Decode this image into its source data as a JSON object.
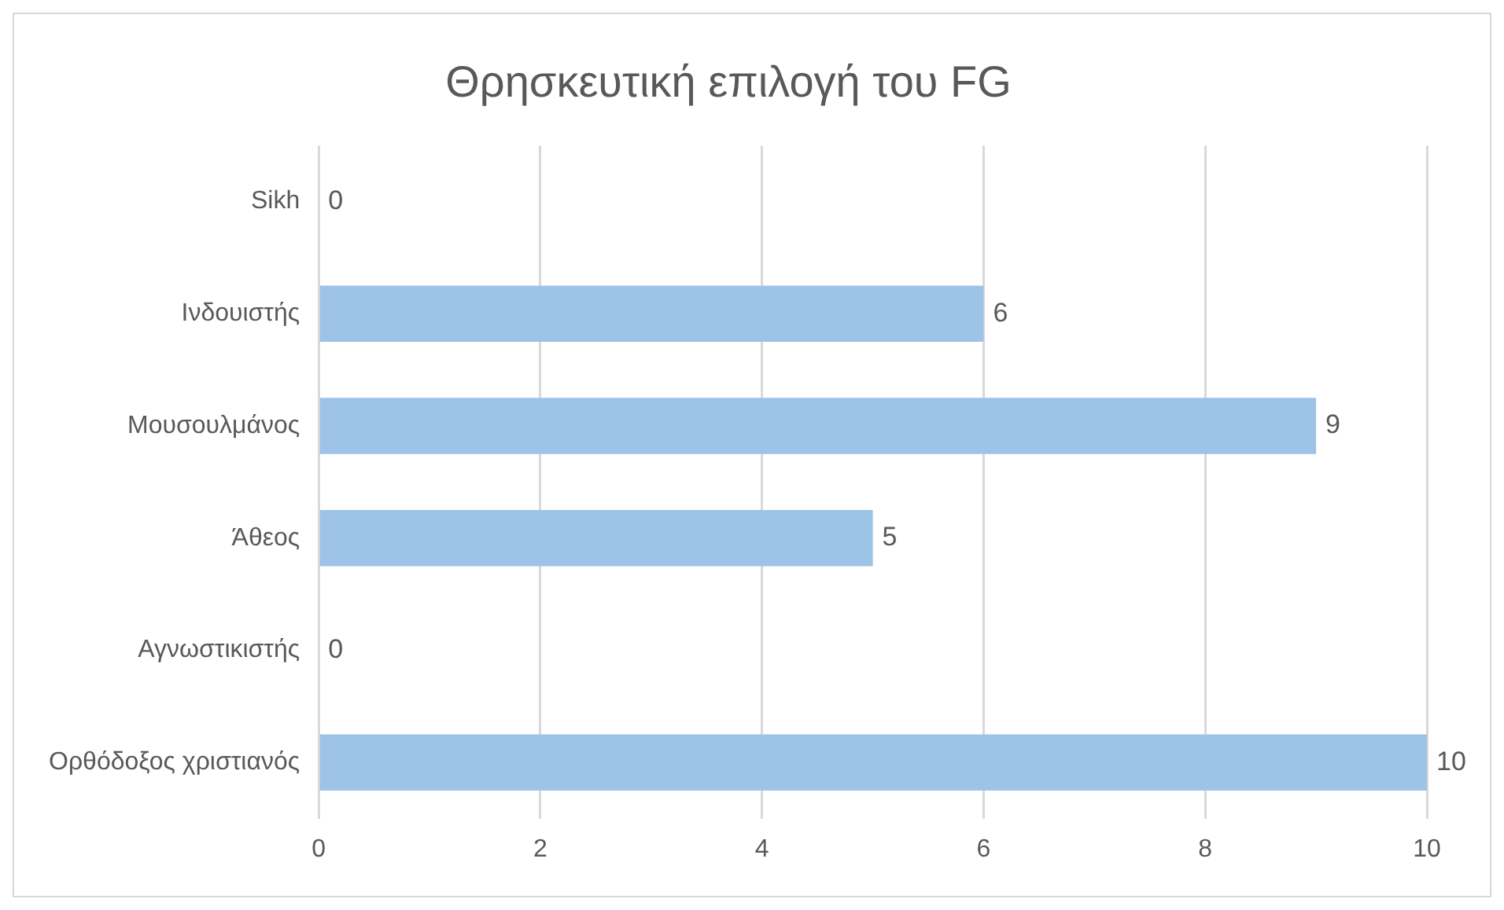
{
  "chart_data": {
    "type": "bar",
    "orientation": "horizontal",
    "title": "Θρησκευτική επιλογή του FG",
    "categories": [
      "Sikh",
      "Ινδουιστής",
      "Μουσουλμάνος",
      "Άθεος",
      "Αγνωστικιστής",
      "Ορθόδοξος χριστιανός"
    ],
    "values": [
      0,
      6,
      9,
      5,
      0,
      10
    ],
    "color": "#9dc3e6",
    "xlim": [
      0,
      10
    ],
    "xticks": [
      0,
      2,
      4,
      6,
      8,
      10
    ],
    "grid": "x",
    "data_labels": true,
    "legend": false
  }
}
